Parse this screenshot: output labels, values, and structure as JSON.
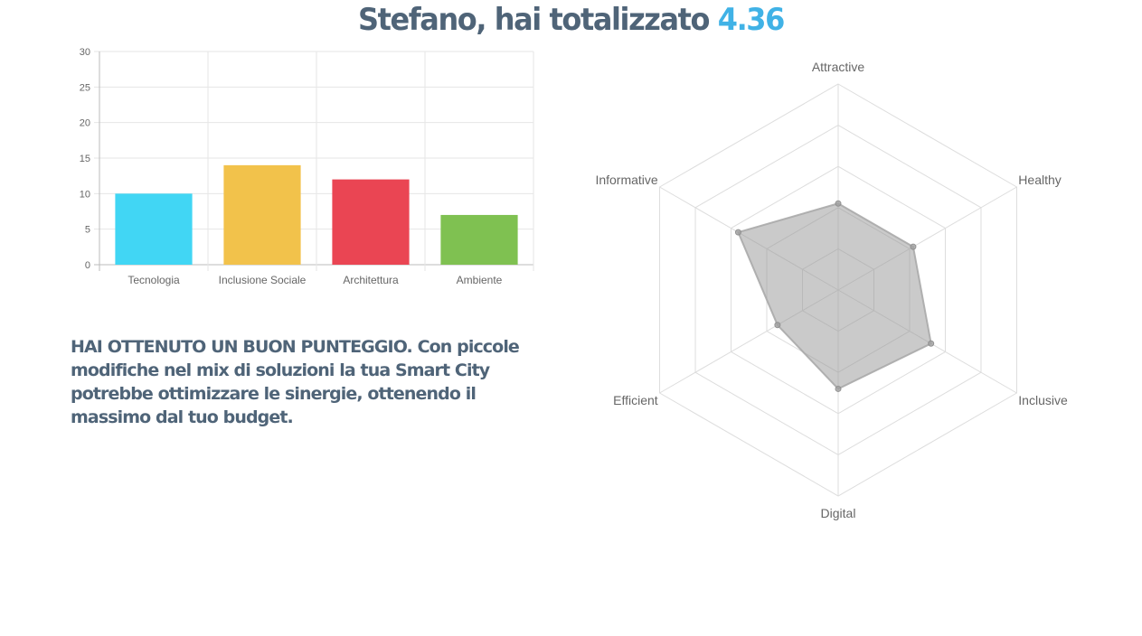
{
  "headline": {
    "prefix": "Stefano, hai totalizzato ",
    "score": "4.36",
    "score_color": "#40b2e6",
    "text_color": "#4f6478"
  },
  "message": {
    "lead": "HAI OTTENUTO UN BUON PUNTEGGIO.",
    "body": " Con piccole modifiche nel mix di soluzioni la tua Smart City potrebbe ottimizzare le sinergie, ottenendo il massimo dal tuo budget."
  },
  "chart_data": [
    {
      "type": "bar",
      "categories": [
        "Tecnologia",
        "Inclusione Sociale",
        "Architettura",
        "Ambiente"
      ],
      "values": [
        10,
        14,
        12,
        7
      ],
      "colors": [
        "#41d6f4",
        "#f2c24b",
        "#ea4553",
        "#7fc151"
      ],
      "yticks": [
        0,
        5,
        10,
        15,
        20,
        25,
        30
      ],
      "ylim": [
        0,
        30
      ],
      "grid": true,
      "legend": "none"
    },
    {
      "type": "radar",
      "axes": [
        "Attractive",
        "Healthy",
        "Inclusive",
        "Digital",
        "Efficient",
        "Informative"
      ],
      "values": [
        2.1,
        2.1,
        2.6,
        2.4,
        1.7,
        2.8
      ],
      "rmax": 5,
      "rings": 5,
      "fill": "rgba(150,150,150,0.5)",
      "stroke": "rgba(170,170,170,0.9)",
      "grid": true,
      "legend": "none"
    }
  ]
}
